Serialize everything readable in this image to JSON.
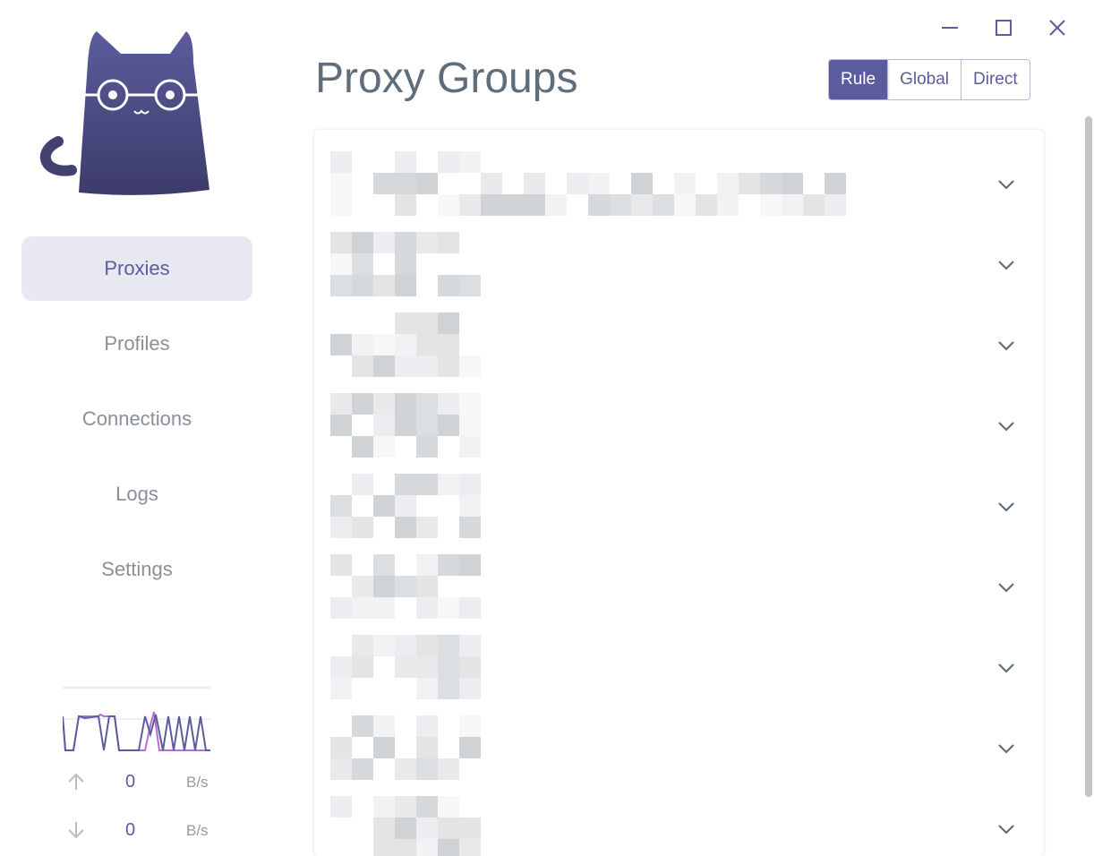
{
  "window": {
    "controls": [
      "minimize",
      "maximize",
      "close"
    ]
  },
  "sidebar": {
    "items": [
      {
        "label": "Proxies",
        "active": true
      },
      {
        "label": "Profiles"
      },
      {
        "label": "Connections"
      },
      {
        "label": "Logs"
      },
      {
        "label": "Settings"
      }
    ]
  },
  "traffic": {
    "upload": {
      "value": "0",
      "unit": "B/s"
    },
    "download": {
      "value": "0",
      "unit": "B/s"
    }
  },
  "header": {
    "title": "Proxy Groups",
    "modes": [
      {
        "label": "Rule",
        "selected": true
      },
      {
        "label": "Global"
      },
      {
        "label": "Direct"
      }
    ]
  },
  "groups": {
    "count": 9,
    "last_row_proxy": "DIRECT"
  },
  "colors": {
    "accent": "#5b5c9d",
    "title": "#5f6d7c",
    "upload_line": "#b86fd1"
  }
}
